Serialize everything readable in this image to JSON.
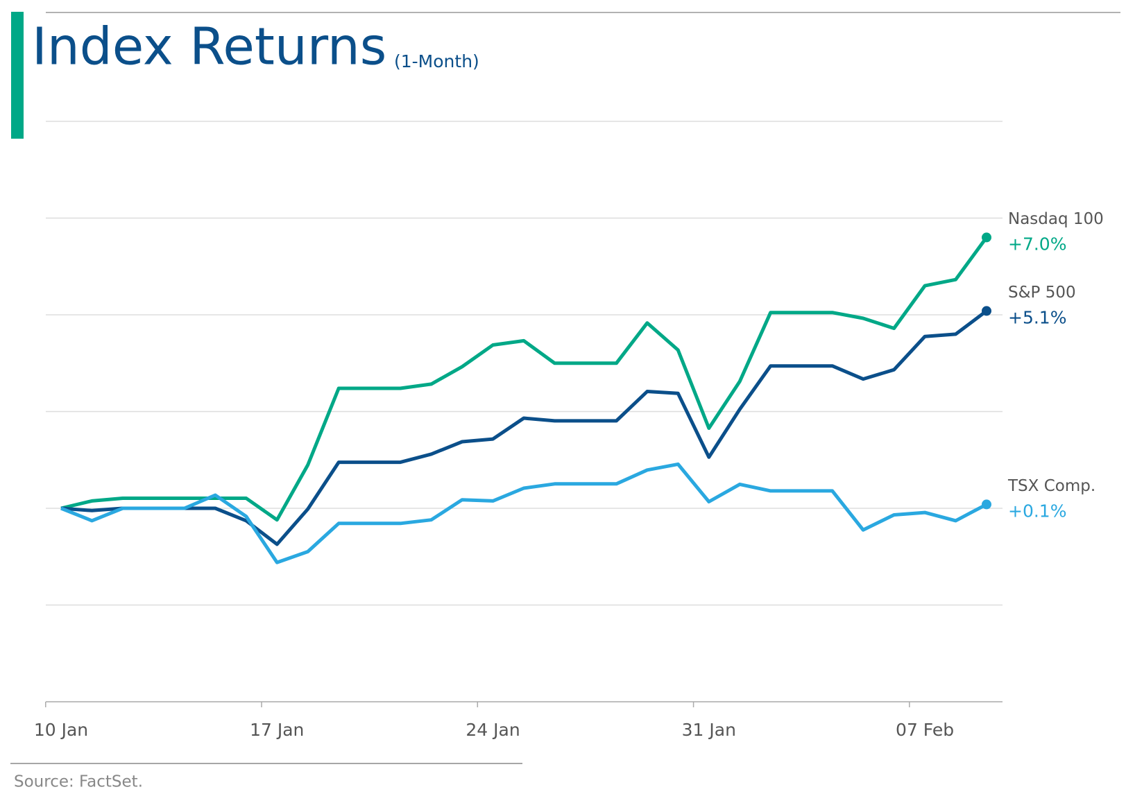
{
  "chart_data": {
    "type": "line",
    "title": "Index Returns",
    "subtitle": "(1-Month)",
    "source": "Source: FactSet.",
    "categories": [
      "10 Jan",
      null,
      null,
      null,
      null,
      null,
      null,
      "17 Jan",
      null,
      null,
      null,
      null,
      null,
      null,
      "24 Jan",
      null,
      null,
      null,
      null,
      null,
      null,
      "31 Jan",
      null,
      null,
      null,
      null,
      null,
      null,
      "07 Feb",
      null,
      null
    ],
    "ylim": [
      -5,
      10
    ],
    "yticks": [
      -5,
      -2.5,
      0,
      2.5,
      5,
      7.5,
      10
    ],
    "grid": true,
    "series": [
      {
        "name": "Nasdaq 100",
        "color": "#00a887",
        "end_label": "+7.0%",
        "values": [
          0,
          0.19,
          0.26,
          0.26,
          0.26,
          0.26,
          0.26,
          -0.3,
          1.12,
          3.1,
          3.1,
          3.1,
          3.21,
          3.66,
          4.22,
          4.33,
          3.75,
          3.75,
          3.75,
          4.79,
          4.09,
          2.07,
          3.28,
          5.06,
          5.06,
          5.06,
          4.91,
          4.65,
          5.75,
          5.91,
          7.0
        ]
      },
      {
        "name": "S&P 500",
        "color": "#0b4f8a",
        "end_label": "+5.1%",
        "values": [
          0,
          -0.06,
          0,
          0,
          0,
          0,
          -0.32,
          -0.93,
          -0.02,
          1.19,
          1.19,
          1.19,
          1.4,
          1.72,
          1.79,
          2.33,
          2.26,
          2.26,
          2.26,
          3.02,
          2.97,
          1.32,
          2.56,
          3.68,
          3.68,
          3.68,
          3.34,
          3.58,
          4.44,
          4.5,
          5.1
        ]
      },
      {
        "name": "TSX Comp.",
        "color": "#2aa8e0",
        "end_label": "+0.1%",
        "values": [
          0,
          -0.32,
          0,
          0,
          0,
          0.34,
          -0.21,
          -1.4,
          -1.12,
          -0.39,
          -0.39,
          -0.39,
          -0.3,
          0.22,
          0.19,
          0.52,
          0.63,
          0.63,
          0.63,
          0.99,
          1.14,
          0.17,
          0.62,
          0.45,
          0.45,
          0.45,
          -0.56,
          -0.17,
          -0.11,
          -0.32,
          0.1
        ]
      }
    ]
  }
}
